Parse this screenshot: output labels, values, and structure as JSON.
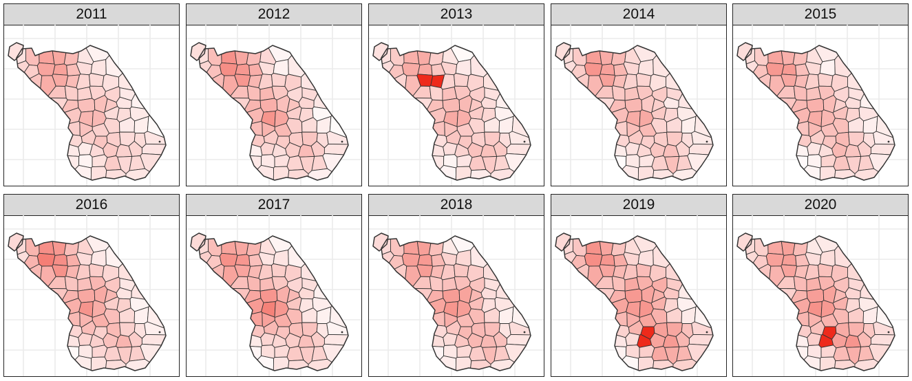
{
  "figure": {
    "facets": [
      {
        "year": "2011",
        "hot": {
          "a": 0.45,
          "b": 0.3,
          "c": 0.2,
          "d": 0.1
        },
        "peak": null
      },
      {
        "year": "2012",
        "hot": {
          "a": 0.5,
          "b": 0.38,
          "c": 0.22,
          "d": 0.12
        },
        "peak": null
      },
      {
        "year": "2013",
        "hot": {
          "a": 0.4,
          "b": 0.3,
          "c": 0.22,
          "d": 0.15
        },
        "peak": "north-central"
      },
      {
        "year": "2014",
        "hot": {
          "a": 0.45,
          "b": 0.32,
          "c": 0.25,
          "d": 0.12
        },
        "peak": null
      },
      {
        "year": "2015",
        "hot": {
          "a": 0.48,
          "b": 0.35,
          "c": 0.25,
          "d": 0.12
        },
        "peak": null
      },
      {
        "year": "2016",
        "hot": {
          "a": 0.55,
          "b": 0.38,
          "c": 0.25,
          "d": 0.15
        },
        "peak": null
      },
      {
        "year": "2017",
        "hot": {
          "a": 0.5,
          "b": 0.5,
          "c": 0.22,
          "d": 0.12
        },
        "peak": null
      },
      {
        "year": "2018",
        "hot": {
          "a": 0.48,
          "b": 0.42,
          "c": 0.28,
          "d": 0.18
        },
        "peak": null
      },
      {
        "year": "2019",
        "hot": {
          "a": 0.5,
          "b": 0.4,
          "c": 0.45,
          "d": 0.25
        },
        "peak": "south-central"
      },
      {
        "year": "2020",
        "hot": {
          "a": 0.45,
          "b": 0.38,
          "c": 0.4,
          "d": 0.22
        },
        "peak": "south-central"
      }
    ],
    "colors": {
      "low": "#ffffff",
      "high": "#ee2a1b",
      "outline": "#333333",
      "gridline": "#ebebeb",
      "strip": "#d9d9d9"
    }
  }
}
